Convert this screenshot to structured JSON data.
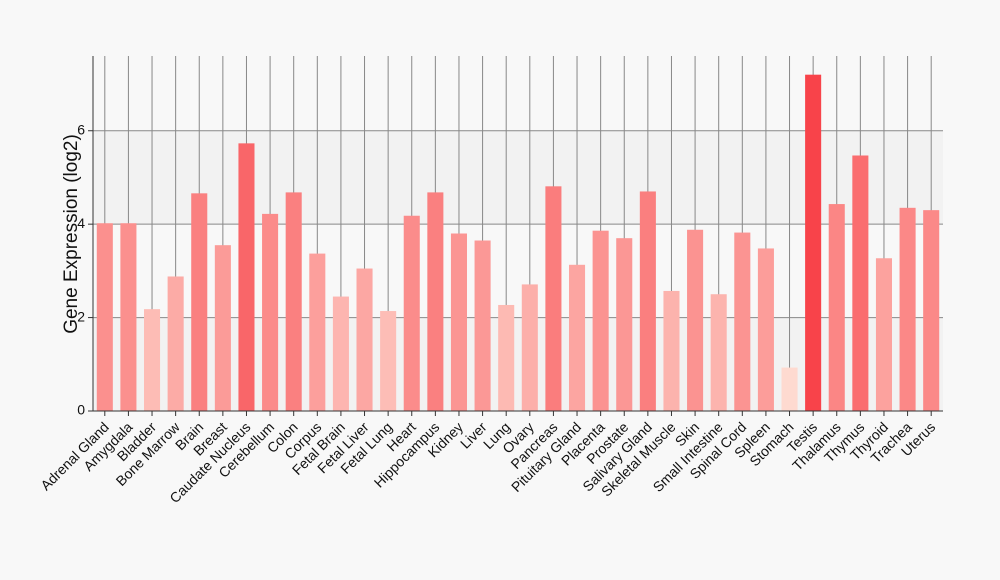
{
  "chart_data": {
    "type": "bar",
    "ylabel": "Gene Expression (log2)",
    "xlabel": "",
    "ylim": [
      0,
      7.6
    ],
    "yticks": [
      0,
      2,
      4,
      6
    ],
    "grid": true,
    "legend": "none",
    "colors": {
      "low": "#fedad0",
      "high": "#f8434a",
      "grid": "#888888",
      "background": "#f8f8f8"
    },
    "categories": [
      "Adrenal Gland",
      "Amygdala",
      "Bladder",
      "Bone Marrow",
      "Brain",
      "Breast",
      "Caudate Nucleus",
      "Cerebellum",
      "Colon",
      "Corpus",
      "Fetal Brain",
      "Fetal Liver",
      "Fetal Lung",
      "Heart",
      "Hippocampus",
      "Kidney",
      "Liver",
      "Lung",
      "Ovary",
      "Pancreas",
      "Pituitary Gland",
      "Placenta",
      "Prostate",
      "Salivary Gland",
      "Skeletal Muscle",
      "Skin",
      "Small Intestine",
      "Spinal Cord",
      "Spleen",
      "Stomach",
      "Testis",
      "Thalamus",
      "Thymus",
      "Thyroid",
      "Trachea",
      "Uterus"
    ],
    "values": [
      4.02,
      4.02,
      2.18,
      2.88,
      4.66,
      3.55,
      5.73,
      4.22,
      4.68,
      3.37,
      2.45,
      3.05,
      2.14,
      4.18,
      4.68,
      3.8,
      3.65,
      2.27,
      2.71,
      4.81,
      3.13,
      3.86,
      3.7,
      4.7,
      2.57,
      3.88,
      2.5,
      3.82,
      3.48,
      0.93,
      7.2,
      4.43,
      5.47,
      3.27,
      4.35,
      4.3
    ]
  }
}
